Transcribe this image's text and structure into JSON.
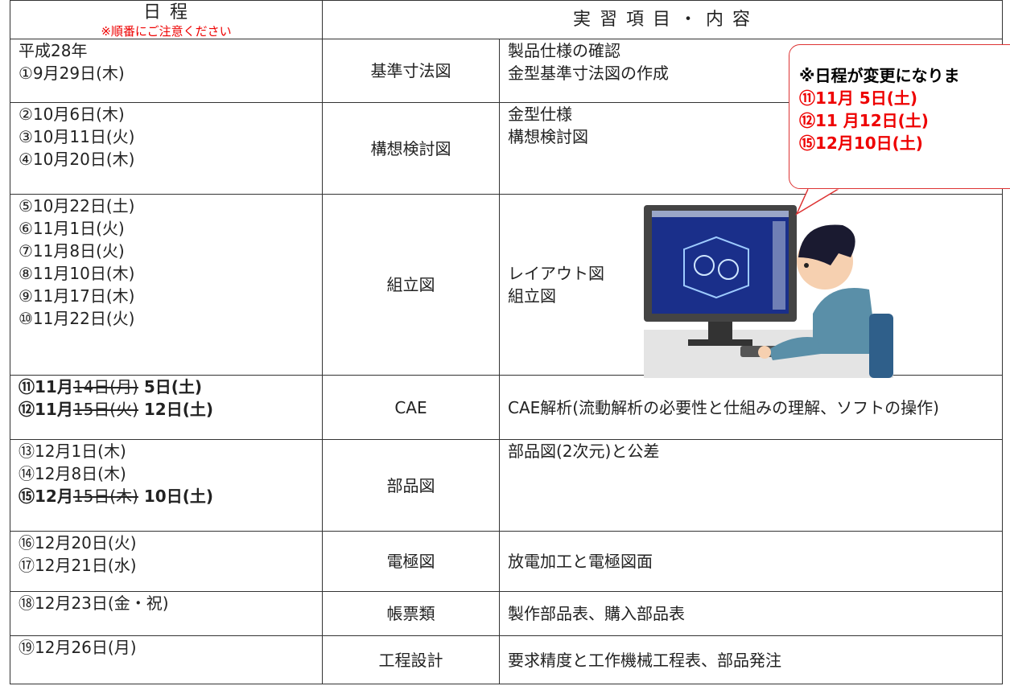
{
  "header": {
    "schedule": "日 程",
    "note": "※順番にご注意ください",
    "content": "実 習 項 目 ・ 内 容"
  },
  "rows": [
    {
      "dates": [
        "平成28年",
        "①9月29日(木)"
      ],
      "topic": "基準寸法図",
      "content": [
        "製品仕様の確認",
        "金型基準寸法図の作成"
      ]
    },
    {
      "dates": [
        "②10月6日(木)",
        "③10月11日(火)",
        "④10月20日(木)"
      ],
      "topic": "構想検討図",
      "content": [
        "金型仕様",
        "構想検討図"
      ]
    },
    {
      "dates": [
        "⑤10月22日(土)",
        "⑥11月1日(火)",
        "⑦11月8日(火)",
        "⑧11月10日(木)",
        "⑨11月17日(木)",
        "⑩11月22日(火)"
      ],
      "topic": "組立図",
      "content": [
        "レイアウト図",
        "組立図"
      ]
    },
    {
      "dates": [
        {
          "label": "⑪11月",
          "struck": "14日(月)",
          "new": "5日(土)"
        },
        {
          "label": "⑫11月",
          "struck": "15日(火)",
          "new": "12日(土)"
        }
      ],
      "topic": "CAE",
      "content": [
        "CAE解析(流動解析の必要性と仕組みの理解、ソフトの操作)"
      ]
    },
    {
      "dates": [
        "⑬12月1日(木)",
        "⑭12月8日(木)",
        {
          "label": "⑮12月",
          "struck": "15日(木)",
          "new": "10日(土)"
        }
      ],
      "topic": "部品図",
      "content": [
        "部品図(2次元)と公差"
      ]
    },
    {
      "dates": [
        "⑯12月20日(火)",
        "⑰12月21日(水)"
      ],
      "topic": "電極図",
      "content": [
        "放電加工と電極図面"
      ]
    },
    {
      "dates": [
        "⑱12月23日(金・祝)"
      ],
      "topic": "帳票類",
      "content": [
        "製作部品表、購入部品表"
      ]
    },
    {
      "dates": [
        "⑲12月26日(月)"
      ],
      "topic": "工程設計",
      "content": [
        "要求精度と工作機械工程表、部品発注"
      ]
    }
  ],
  "callout": {
    "title": "※日程が変更になりま",
    "lines": [
      "⑪11月 5日(土)",
      "⑫11 月12日(土)",
      "⑮12月10日(土)"
    ]
  }
}
